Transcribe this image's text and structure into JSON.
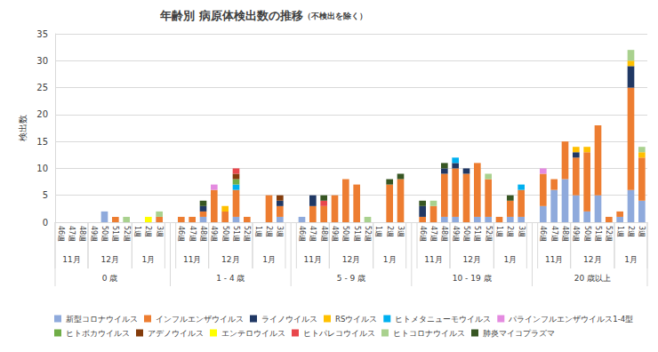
{
  "chart_data": {
    "type": "bar",
    "title": "年齢別 病原体検出数の推移",
    "subtitle": "（不検出を除く）",
    "y_label": "検出数",
    "stacked": true,
    "grid": true,
    "legend": "bottom",
    "ylim": [
      0,
      35
    ],
    "yticks": [
      0,
      5,
      10,
      15,
      20,
      25,
      30,
      35
    ],
    "categories": [
      "46週",
      "47週",
      "48週",
      "49週",
      "50週",
      "51週",
      "52週",
      "1週",
      "2週",
      "3週",
      null,
      "46週",
      "47週",
      "48週",
      "49週",
      "50週",
      "51週",
      "52週",
      "1週",
      "2週",
      "3週",
      null,
      "46週",
      "47週",
      "48週",
      "49週",
      "50週",
      "51週",
      "52週",
      "1週",
      "2週",
      "3週",
      null,
      "46週",
      "47週",
      "48週",
      "49週",
      "50週",
      "51週",
      "52週",
      "1週",
      "2週",
      "3週",
      null,
      "46週",
      "47週",
      "48週",
      "49週",
      "50週",
      "51週",
      "52週",
      "1週",
      "2週",
      "3週"
    ],
    "category_months": [
      "11月",
      "11月",
      "11月",
      "12月",
      "12月",
      "12月",
      "12月",
      "1月",
      "1月",
      "1月",
      null,
      "11月",
      "11月",
      "11月",
      "12月",
      "12月",
      "12月",
      "12月",
      "1月",
      "1月",
      "1月",
      null,
      "11月",
      "11月",
      "11月",
      "12月",
      "12月",
      "12月",
      "12月",
      "1月",
      "1月",
      "1月",
      null,
      "11月",
      "11月",
      "11月",
      "12月",
      "12月",
      "12月",
      "12月",
      "1月",
      "1月",
      "1月",
      null,
      "11月",
      "11月",
      "11月",
      "12月",
      "12月",
      "12月",
      "12月",
      "1月",
      "1月",
      "1月"
    ],
    "category_groups": [
      "0 歳",
      "0 歳",
      "0 歳",
      "0 歳",
      "0 歳",
      "0 歳",
      "0 歳",
      "0 歳",
      "0 歳",
      "0 歳",
      null,
      "1 - 4 歳",
      "1 - 4 歳",
      "1 - 4 歳",
      "1 - 4 歳",
      "1 - 4 歳",
      "1 - 4 歳",
      "1 - 4 歳",
      "1 - 4 歳",
      "1 - 4 歳",
      "1 - 4 歳",
      null,
      "5 - 9 歳",
      "5 - 9 歳",
      "5 - 9 歳",
      "5 - 9 歳",
      "5 - 9 歳",
      "5 - 9 歳",
      "5 - 9 歳",
      "5 - 9 歳",
      "5 - 9 歳",
      "5 - 9 歳",
      null,
      "10 - 19 歳",
      "10 - 19 歳",
      "10 - 19 歳",
      "10 - 19 歳",
      "10 - 19 歳",
      "10 - 19 歳",
      "10 - 19 歳",
      "10 - 19 歳",
      "10 - 19 歳",
      "10 - 19 歳",
      null,
      "20 歳以上",
      "20 歳以上",
      "20 歳以上",
      "20 歳以上",
      "20 歳以上",
      "20 歳以上",
      "20 歳以上",
      "20 歳以上",
      "20 歳以上",
      "20 歳以上"
    ],
    "series": [
      {
        "name": "新型コロナウイルス",
        "color": "#8faadc",
        "values": [
          0,
          0,
          0,
          0,
          2,
          0,
          0,
          0,
          0,
          0,
          null,
          0,
          0,
          1,
          0,
          0,
          1,
          0,
          0,
          0,
          1,
          null,
          1,
          0,
          0,
          0,
          0,
          0,
          0,
          0,
          0,
          0,
          null,
          0,
          0,
          1,
          1,
          0,
          1,
          1,
          0,
          1,
          1,
          null,
          3,
          6,
          8,
          5,
          2,
          5,
          0,
          1,
          6,
          4
        ]
      },
      {
        "name": "インフルエンザウイルス",
        "color": "#ed7d31",
        "values": [
          0,
          0,
          0,
          0,
          0,
          1,
          0,
          0,
          0,
          1,
          null,
          1,
          1,
          1,
          6,
          2,
          5,
          1,
          0,
          5,
          2,
          null,
          0,
          3,
          3,
          5,
          8,
          7,
          0,
          0,
          7,
          8,
          null,
          1,
          3,
          8,
          9,
          9,
          10,
          7,
          1,
          3,
          5,
          null,
          6,
          2,
          7,
          7,
          11,
          13,
          1,
          1,
          19,
          8
        ]
      },
      {
        "name": "ライノウイルス",
        "color": "#203864",
        "values": [
          0,
          0,
          0,
          0,
          0,
          0,
          0,
          0,
          0,
          0,
          null,
          0,
          0,
          1,
          0,
          0,
          0,
          0,
          0,
          0,
          1,
          null,
          0,
          2,
          0,
          0,
          0,
          0,
          0,
          0,
          0,
          0,
          null,
          2,
          0,
          1,
          1,
          1,
          0,
          0,
          0,
          0,
          0,
          null,
          0,
          0,
          0,
          1,
          0,
          0,
          0,
          0,
          4,
          0
        ]
      },
      {
        "name": "RSウイルス",
        "color": "#ffc000",
        "values": [
          0,
          0,
          0,
          0,
          0,
          0,
          0,
          0,
          0,
          0,
          null,
          0,
          0,
          0,
          0,
          1,
          0,
          0,
          0,
          0,
          0,
          null,
          0,
          0,
          0,
          0,
          0,
          0,
          0,
          0,
          0,
          0,
          null,
          0,
          0,
          0,
          0,
          0,
          0,
          0,
          0,
          0,
          0,
          null,
          0,
          0,
          0,
          1,
          1,
          0,
          0,
          0,
          1,
          1
        ]
      },
      {
        "name": "ヒトメタニューモウイルス",
        "color": "#00b0f0",
        "values": [
          0,
          0,
          0,
          0,
          0,
          0,
          0,
          0,
          0,
          0,
          null,
          0,
          0,
          0,
          0,
          0,
          1,
          0,
          0,
          0,
          0,
          null,
          0,
          0,
          0,
          0,
          0,
          0,
          0,
          0,
          0,
          0,
          null,
          0,
          0,
          0,
          1,
          0,
          0,
          0,
          0,
          0,
          1,
          null,
          0,
          0,
          0,
          0,
          0,
          0,
          0,
          0,
          0,
          0
        ]
      },
      {
        "name": "パラインフルエンザウイルス1-4型",
        "color": "#e48be0",
        "values": [
          0,
          0,
          0,
          0,
          0,
          0,
          0,
          0,
          0,
          0,
          null,
          0,
          0,
          0,
          1,
          0,
          0,
          0,
          0,
          0,
          0,
          null,
          0,
          0,
          0,
          0,
          0,
          0,
          0,
          0,
          0,
          0,
          null,
          0,
          0,
          0,
          0,
          0,
          0,
          0,
          0,
          0,
          0,
          null,
          1,
          0,
          0,
          0,
          0,
          0,
          0,
          0,
          0,
          0
        ]
      },
      {
        "name": "ヒトボカウイルス",
        "color": "#70ad47",
        "values": [
          0,
          0,
          0,
          0,
          0,
          0,
          0,
          0,
          0,
          0,
          null,
          0,
          0,
          0,
          0,
          0,
          1,
          0,
          0,
          0,
          0,
          null,
          0,
          0,
          0,
          0,
          0,
          0,
          0,
          0,
          0,
          0,
          null,
          0,
          0,
          0,
          0,
          0,
          0,
          0,
          0,
          0,
          0,
          null,
          0,
          0,
          0,
          0,
          0,
          0,
          0,
          0,
          0,
          0
        ]
      },
      {
        "name": "アデノウイルス",
        "color": "#843c0c",
        "values": [
          0,
          0,
          0,
          0,
          0,
          0,
          0,
          0,
          0,
          0,
          null,
          0,
          0,
          0,
          0,
          0,
          1,
          0,
          0,
          0,
          1,
          null,
          0,
          0,
          0,
          0,
          0,
          0,
          0,
          0,
          0,
          0,
          null,
          0,
          0,
          0,
          0,
          0,
          0,
          0,
          0,
          0,
          0,
          null,
          0,
          0,
          0,
          0,
          0,
          0,
          0,
          0,
          0,
          0
        ]
      },
      {
        "name": "エンテロウイルス",
        "color": "#ffff00",
        "values": [
          0,
          0,
          0,
          0,
          0,
          0,
          0,
          0,
          1,
          0,
          null,
          0,
          0,
          0,
          0,
          0,
          0,
          0,
          0,
          0,
          0,
          null,
          0,
          0,
          0,
          0,
          0,
          0,
          0,
          0,
          0,
          0,
          null,
          0,
          0,
          0,
          0,
          0,
          0,
          0,
          0,
          0,
          0,
          null,
          0,
          0,
          0,
          0,
          0,
          0,
          0,
          0,
          0,
          0
        ]
      },
      {
        "name": "ヒトパレコウイルス",
        "color": "#e8474c",
        "values": [
          0,
          0,
          0,
          0,
          0,
          0,
          0,
          0,
          0,
          0,
          null,
          0,
          0,
          0,
          0,
          0,
          1,
          0,
          0,
          0,
          0,
          null,
          0,
          0,
          1,
          0,
          0,
          0,
          0,
          0,
          0,
          0,
          null,
          0,
          0,
          0,
          0,
          0,
          0,
          0,
          0,
          0,
          0,
          null,
          0,
          0,
          0,
          0,
          0,
          0,
          0,
          0,
          0,
          0
        ]
      },
      {
        "name": "ヒトコロナウイルス",
        "color": "#a9d18e",
        "values": [
          0,
          0,
          0,
          0,
          0,
          0,
          1,
          0,
          0,
          1,
          null,
          0,
          0,
          0,
          0,
          0,
          0,
          0,
          0,
          0,
          0,
          null,
          0,
          0,
          0,
          0,
          0,
          0,
          1,
          0,
          0,
          0,
          null,
          0,
          1,
          0,
          0,
          0,
          0,
          1,
          0,
          0,
          0,
          null,
          0,
          0,
          0,
          0,
          0,
          0,
          0,
          0,
          2,
          1
        ]
      },
      {
        "name": "肺炎マイコプラズマ",
        "color": "#375623",
        "values": [
          0,
          0,
          0,
          0,
          0,
          0,
          0,
          0,
          0,
          0,
          null,
          0,
          0,
          1,
          0,
          0,
          0,
          0,
          0,
          0,
          0,
          null,
          0,
          0,
          1,
          0,
          0,
          0,
          0,
          0,
          1,
          1,
          null,
          1,
          0,
          1,
          0,
          0,
          0,
          0,
          0,
          1,
          0,
          null,
          0,
          0,
          0,
          0,
          0,
          0,
          0,
          0,
          0,
          0
        ]
      }
    ]
  }
}
